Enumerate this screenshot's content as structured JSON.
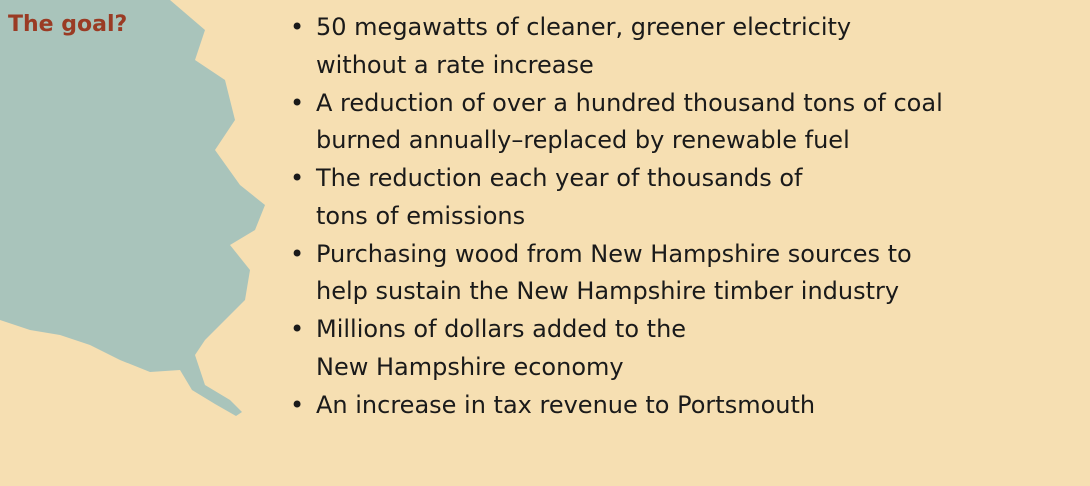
{
  "heading": "The goal?",
  "bullets": [
    {
      "lines": [
        "50 megawatts of cleaner, greener electricity",
        "without a rate increase"
      ]
    },
    {
      "lines": [
        "A reduction of over a hundred thousand tons of coal",
        "burned annually–replaced by renewable fuel"
      ]
    },
    {
      "lines": [
        "The reduction each year of thousands of",
        "tons of emissions"
      ]
    },
    {
      "lines": [
        "Purchasing wood from New Hampshire sources to",
        "help sustain the New Hampshire timber industry"
      ]
    },
    {
      "lines": [
        "Millions of dollars added to the",
        "New Hampshire economy"
      ]
    },
    {
      "lines": [
        "An increase in tax revenue to Portsmouth"
      ]
    }
  ]
}
